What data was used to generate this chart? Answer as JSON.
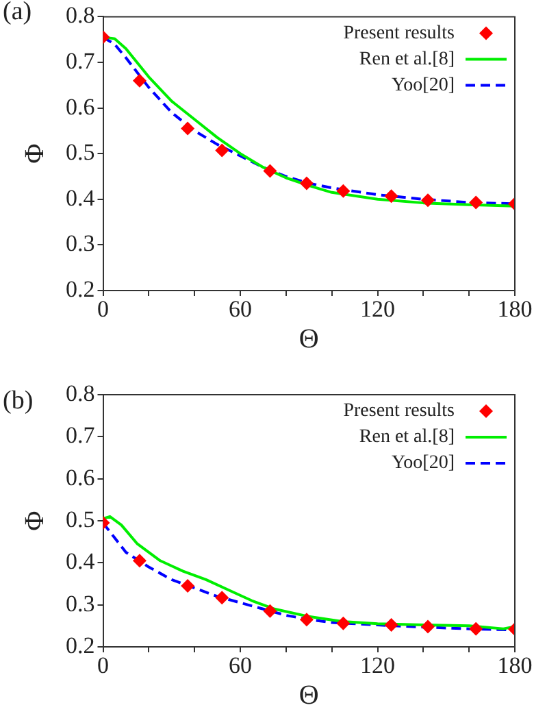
{
  "chart_data": [
    {
      "type": "line",
      "title": "(a)",
      "xlabel": "Θ",
      "ylabel": "Φ",
      "xlim": [
        0,
        180
      ],
      "ylim": [
        0.2,
        0.8
      ],
      "xticks": [
        0,
        {
          "value": 20,
          "label": null
        },
        {
          "value": 40,
          "label": null
        },
        60,
        {
          "value": 80,
          "label": null
        },
        {
          "value": 100,
          "label": null
        },
        120,
        {
          "value": 140,
          "label": null
        },
        {
          "value": 160,
          "label": null
        },
        180
      ],
      "yticks": [
        0.2,
        0.3,
        0.4,
        0.5,
        0.6,
        0.7,
        0.8
      ],
      "grid": false,
      "legend": "top right",
      "series": [
        {
          "name": "Present results",
          "type": "scatter",
          "marker": "diamond",
          "color": "#ff0000",
          "x": [
            0,
            16,
            37,
            52,
            73,
            89,
            105,
            126,
            142,
            163,
            180
          ],
          "values": [
            0.755,
            0.66,
            0.555,
            0.507,
            0.462,
            0.435,
            0.418,
            0.407,
            0.398,
            0.393,
            0.39
          ]
        },
        {
          "name": "Ren et al.[8]",
          "type": "line",
          "marker": "none",
          "line_style": "solid",
          "color": "#00ee00",
          "x": [
            0,
            5,
            10,
            20,
            30,
            40,
            50,
            60,
            70,
            80,
            90,
            100,
            120,
            140,
            160,
            180
          ],
          "values": [
            0.755,
            0.752,
            0.73,
            0.668,
            0.615,
            0.575,
            0.535,
            0.5,
            0.47,
            0.447,
            0.43,
            0.415,
            0.4,
            0.392,
            0.388,
            0.385
          ]
        },
        {
          "name": "Yoo[20]",
          "type": "line",
          "marker": "none",
          "line_style": "dashed",
          "color": "#0000ff",
          "x": [
            0,
            5,
            10,
            20,
            30,
            40,
            50,
            60,
            70,
            80,
            90,
            100,
            120,
            140,
            160,
            180
          ],
          "values": [
            0.755,
            0.74,
            0.71,
            0.645,
            0.59,
            0.55,
            0.52,
            0.495,
            0.47,
            0.45,
            0.435,
            0.425,
            0.41,
            0.4,
            0.393,
            0.39
          ]
        }
      ]
    },
    {
      "type": "line",
      "title": "(b)",
      "xlabel": "Θ",
      "ylabel": "Φ",
      "xlim": [
        0,
        180
      ],
      "ylim": [
        0.2,
        0.8
      ],
      "xticks": [
        0,
        {
          "value": 20,
          "label": null
        },
        {
          "value": 40,
          "label": null
        },
        60,
        {
          "value": 80,
          "label": null
        },
        {
          "value": 100,
          "label": null
        },
        120,
        {
          "value": 140,
          "label": null
        },
        {
          "value": 160,
          "label": null
        },
        180
      ],
      "yticks": [
        0.2,
        0.3,
        0.4,
        0.5,
        0.6,
        0.7,
        0.8
      ],
      "grid": false,
      "legend": "top right",
      "series": [
        {
          "name": "Present results",
          "type": "scatter",
          "marker": "diamond",
          "color": "#ff0000",
          "x": [
            0,
            16,
            37,
            52,
            73,
            89,
            105,
            126,
            142,
            163,
            180
          ],
          "values": [
            0.495,
            0.405,
            0.345,
            0.317,
            0.285,
            0.265,
            0.256,
            0.252,
            0.248,
            0.243,
            0.242
          ]
        },
        {
          "name": "Ren et al.[8]",
          "type": "line",
          "marker": "none",
          "line_style": "solid",
          "color": "#00ee00",
          "x": [
            0,
            3,
            8,
            15,
            25,
            35,
            45,
            55,
            65,
            75,
            90,
            105,
            120,
            140,
            160,
            175,
            180
          ],
          "values": [
            0.505,
            0.51,
            0.49,
            0.445,
            0.405,
            0.38,
            0.36,
            0.335,
            0.31,
            0.29,
            0.272,
            0.26,
            0.255,
            0.252,
            0.25,
            0.243,
            0.248
          ]
        },
        {
          "name": "Yoo[20]",
          "type": "line",
          "marker": "none",
          "line_style": "dashed",
          "color": "#0000ff",
          "x": [
            0,
            5,
            10,
            20,
            30,
            40,
            50,
            60,
            70,
            80,
            90,
            100,
            120,
            140,
            160,
            180
          ],
          "values": [
            0.495,
            0.46,
            0.425,
            0.39,
            0.36,
            0.34,
            0.32,
            0.305,
            0.29,
            0.275,
            0.265,
            0.258,
            0.252,
            0.247,
            0.243,
            0.24
          ]
        }
      ]
    }
  ]
}
